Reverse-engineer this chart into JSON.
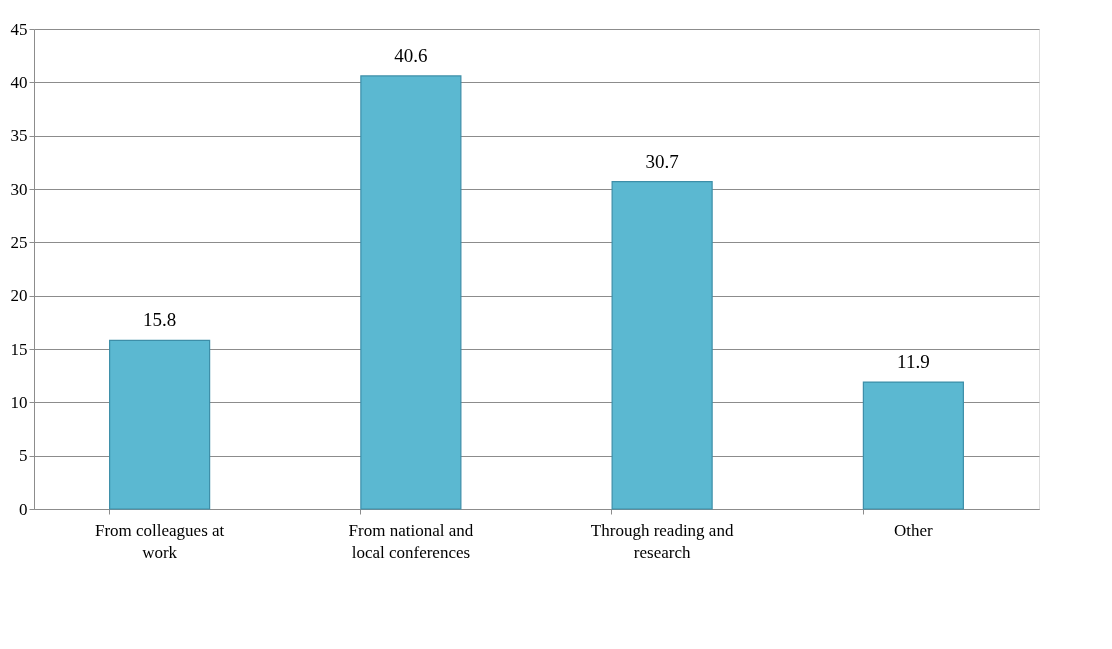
{
  "chart_data": {
    "type": "bar",
    "categories": [
      "From colleagues at work",
      "From national and local conferences",
      "Through reading and research",
      "Other"
    ],
    "values": [
      15.8,
      40.6,
      30.7,
      11.9
    ],
    "color": "#5bb8d1",
    "ylim": [
      0,
      45
    ],
    "yticks": [
      0,
      5,
      10,
      15,
      20,
      25,
      30,
      35,
      40,
      45
    ],
    "grid": "y",
    "data_labels": true
  }
}
